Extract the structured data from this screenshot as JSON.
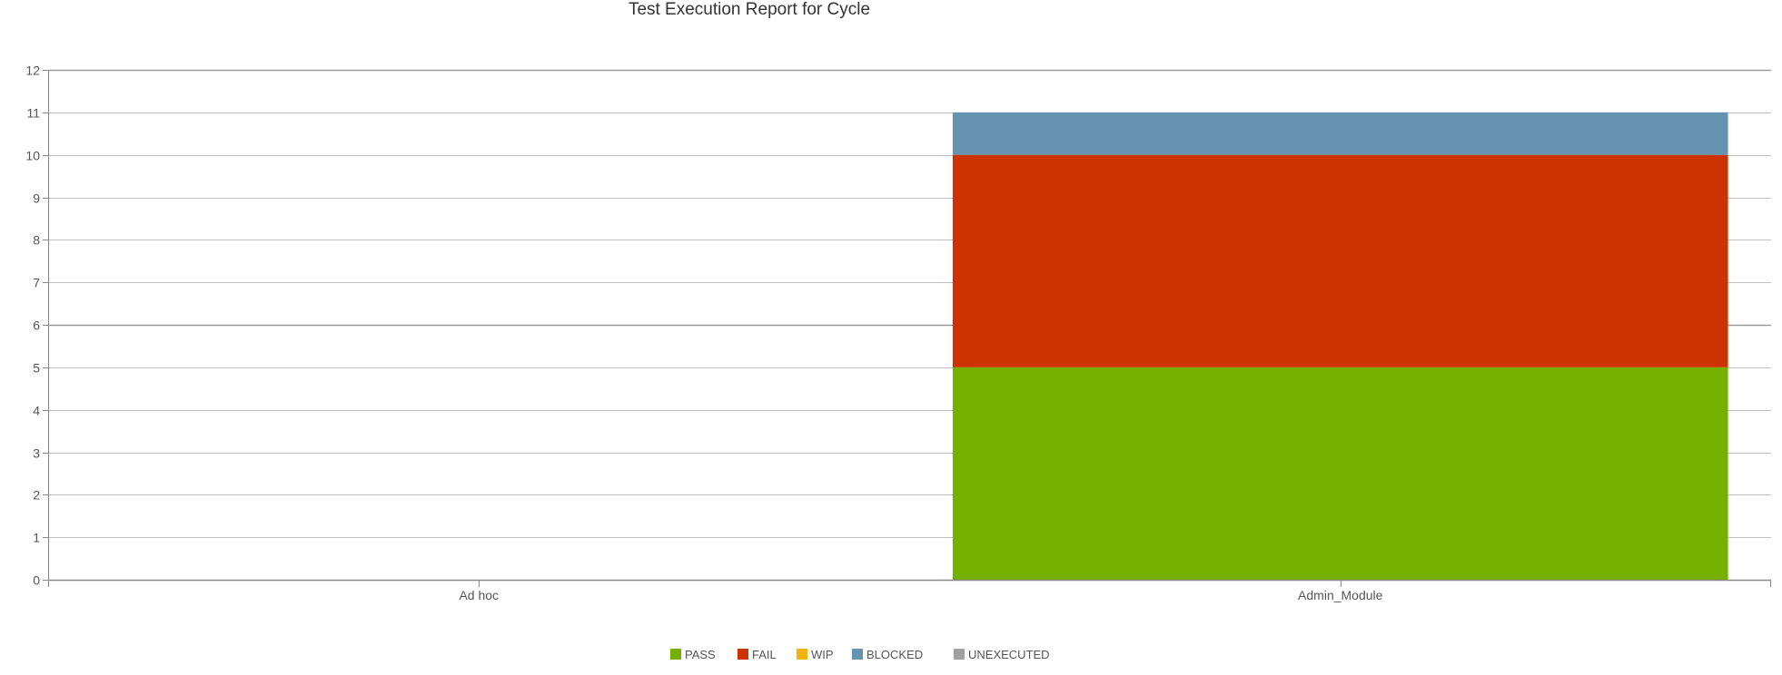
{
  "chart_data": {
    "type": "bar",
    "stacked": true,
    "title": "Test Execution Report for Cycle",
    "categories": [
      "Ad hoc",
      "Admin_Module"
    ],
    "series": [
      {
        "name": "PASS",
        "color": "#75b000",
        "values": [
          0,
          5
        ]
      },
      {
        "name": "FAIL",
        "color": "#cc3300",
        "values": [
          0,
          5
        ]
      },
      {
        "name": "WIP",
        "color": "#f2b40c",
        "values": [
          0,
          0
        ]
      },
      {
        "name": "BLOCKED",
        "color": "#6693b0",
        "values": [
          0,
          1
        ]
      },
      {
        "name": "UNEXECUTED",
        "color": "#a0a0a0",
        "values": [
          0,
          0
        ]
      }
    ],
    "ylim": [
      0,
      12
    ],
    "yticks": [
      0,
      1,
      2,
      3,
      4,
      5,
      6,
      7,
      8,
      9,
      10,
      11,
      12
    ],
    "xlabel": "",
    "ylabel": "",
    "grid": true,
    "legend": "bottom-center"
  }
}
